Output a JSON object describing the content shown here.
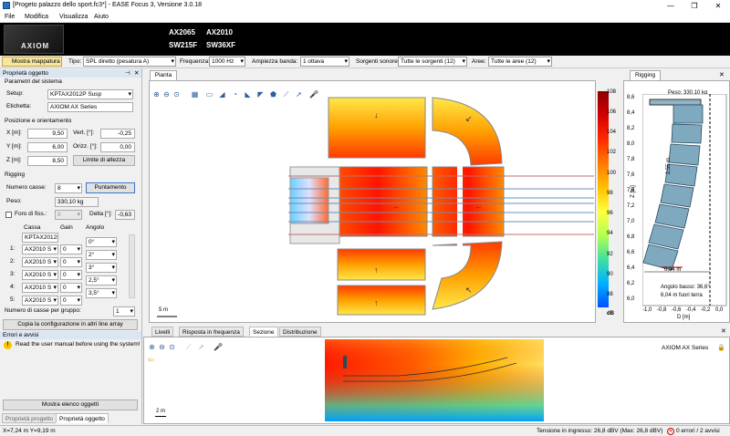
{
  "window": {
    "title": "[Progeto palazzo dello sport.fc3*] - EASE Focus 3, Versione 3.0.18"
  },
  "menu": [
    "File",
    "Modifica",
    "Visualizza",
    "Aiuto"
  ],
  "banner": {
    "logo": "AXIOM",
    "products": [
      "AX2065",
      "AX2010",
      "SW215F",
      "SW36XF"
    ]
  },
  "toolbar": {
    "mapping_button": "Mostra mappatura",
    "tipo_label": "Tipo:",
    "tipo_value": "SPL diretto (pesatura A)",
    "freq_label": "Frequenza:",
    "freq_value": "1000 Hz",
    "band_label": "Ampiezza banda:",
    "band_value": "1 ottava",
    "sources_label": "Sorgenti sonore:",
    "sources_value": "Tutte le sorgenti (12)",
    "areas_label": "Aree:",
    "areas_value": "Tutte le aree (12)"
  },
  "left": {
    "panel_title": "Proprietà oggetto",
    "system_params": "Parametri del sistema",
    "setup_label": "Setup:",
    "setup_value": "KPTAX2012P Susp",
    "etichetta_label": "Etichetta:",
    "etichetta_value": "AXIOM AX Series",
    "pos_section": "Posizione e orientamento",
    "x_label": "X [m]:",
    "x_value": "9,50",
    "vert_label": "Vert. [°]:",
    "vert_value": "-0,25",
    "y_label": "Y [m]:",
    "y_value": "6,00",
    "orizz_label": "Orizz. [°]:",
    "orizz_value": "0,00",
    "z_label": "Z [m]:",
    "z_value": "8,50",
    "height_limits": "Limite di altezza",
    "rigging_section": "Rigging",
    "num_casse_label": "Numero casse:",
    "num_casse_value": "8",
    "puntamento": "Puntamento",
    "peso_label": "Peso:",
    "peso_value": "330,10 kg",
    "foro_label": "Foro di fiss.:",
    "foro_value": "8",
    "delta_label": "Delta [°]:",
    "delta_value": "-0,63",
    "table_headers": [
      "Cassa",
      "Gain",
      "Angolo"
    ],
    "table_top": "KPTAX2012P",
    "rows": [
      {
        "idx": "1:",
        "cassa": "AX2010 S",
        "gain": "0",
        "angolo": "0°"
      },
      {
        "idx": "2:",
        "cassa": "AX2010 S",
        "gain": "0",
        "angolo": "2°"
      },
      {
        "idx": "3:",
        "cassa": "AX2010 S",
        "gain": "0",
        "angolo": "3°"
      },
      {
        "idx": "4:",
        "cassa": "AX2010 S",
        "gain": "0",
        "angolo": "2,5°"
      },
      {
        "idx": "5:",
        "cassa": "AX2010 S",
        "gain": "0",
        "angolo": "3,5°"
      }
    ],
    "group_label": "Numero di casse per gruppo:",
    "group_value": "1",
    "copy_btn": "Copia la configurazione in altri line array",
    "errors_title": "Errori e avvisi",
    "error_msg": "Read the user manual before using the system!",
    "show_list": "Mostra elenco oggetti",
    "tab_project": "Proprietà progetto",
    "tab_object": "Proprietà oggetto"
  },
  "plan": {
    "tab": "Pianta",
    "scale": "5 m"
  },
  "colorbar": {
    "ticks": [
      "108",
      "106",
      "104",
      "102",
      "100",
      "98",
      "96",
      "94",
      "92",
      "90",
      "88"
    ],
    "unit": "dB"
  },
  "rigging": {
    "tab": "Rigging",
    "peso": "Peso: 330,10 kg",
    "yticks": [
      "8,6",
      "8,4",
      "8,2",
      "8,0",
      "7,8",
      "7,6",
      "7,4",
      "7,2",
      "7,0",
      "6,8",
      "6,6",
      "6,4",
      "6,2",
      "6,0"
    ],
    "xticks": [
      "-1,0",
      "-0,8",
      "-0,6",
      "-0,4",
      "-0,2",
      "0,0"
    ],
    "ylabel": "Z [m]",
    "xlabel": "D [m]",
    "dim1": "0,94 m",
    "dim2": "2,55 m",
    "angle": "Angolo basso: 36,6°",
    "ground": "6,04 m fuori terra"
  },
  "bottom": {
    "tabs": [
      "Livelli",
      "Risposta in frequenza",
      "Sezione",
      "Distribuzione"
    ],
    "series_label": "AXIOM AX Series",
    "scale": "2 m"
  },
  "status": {
    "coords": "X=7,24 m Y=9,19 m",
    "voltage": "Tensione in ingresso: 26,8 dBV (Max: 26,8 dBV)",
    "errors": "0 errori / 2 avvisi"
  }
}
